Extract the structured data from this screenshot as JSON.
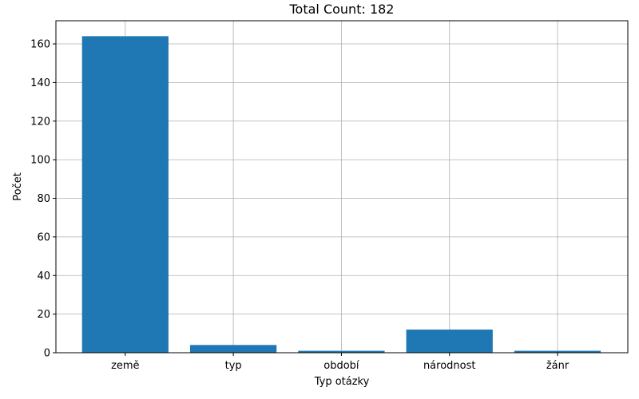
{
  "chart_data": {
    "type": "bar",
    "title": "Total Count: 182",
    "xlabel": "Typ otázky",
    "ylabel": "Počet",
    "categories": [
      "země",
      "typ",
      "období",
      "národnost",
      "žánr"
    ],
    "values": [
      164,
      4,
      1,
      12,
      1
    ],
    "ylim": [
      0,
      172
    ],
    "yticks": [
      0,
      20,
      40,
      60,
      80,
      100,
      120,
      140,
      160
    ],
    "grid": true,
    "bar_color": "#1f77b4",
    "grid_color": "#b0b0b0"
  }
}
